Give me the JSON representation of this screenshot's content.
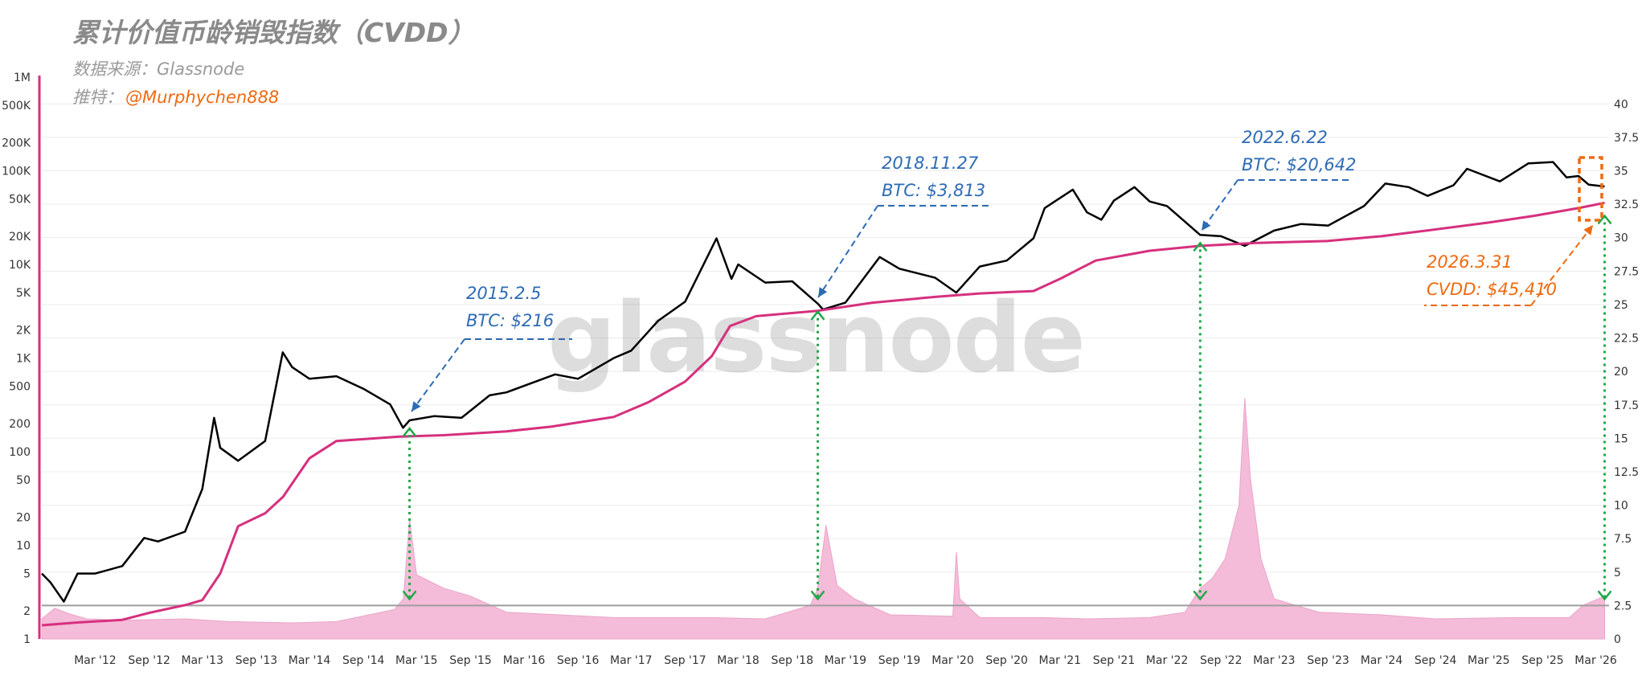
{
  "header": {
    "title": "累计价值币龄销毁指数（CVDD）",
    "source": "数据来源：Glassnode",
    "twitter_label": "推特：",
    "twitter_handle": "@Murphychen888"
  },
  "watermark": "glassnode",
  "colors": {
    "price": "#000000",
    "cvdd": "#d6307e",
    "volume": "#f4bcd8",
    "annotation_blue": "#2d6bb5",
    "annotation_orange": "#ee6a10",
    "green_arrow": "#21a84a",
    "left_axis": "#d6307e"
  },
  "annotations": [
    {
      "date": "2015.2.5",
      "value": "BTC: $216"
    },
    {
      "date": "2018.11.27",
      "value": "BTC: $3,813"
    },
    {
      "date": "2022.6.22",
      "value": "BTC: $20,642"
    },
    {
      "date": "2026.3.31",
      "value": "CVDD: $45,410"
    }
  ],
  "chart_data": {
    "type": "line",
    "title": "累计价值币龄销毁指数（CVDD）",
    "y_scale": "log",
    "ylim": [
      1,
      1000000
    ],
    "y_ticks": [
      "1",
      "2",
      "5",
      "10",
      "20",
      "50",
      "100",
      "200",
      "500",
      "1K",
      "2K",
      "5K",
      "10K",
      "20K",
      "50K",
      "100K",
      "200K",
      "500K",
      "1M"
    ],
    "y_tick_values": [
      1,
      2,
      5,
      10,
      20,
      50,
      100,
      200,
      500,
      1000,
      2000,
      5000,
      10000,
      20000,
      50000,
      100000,
      200000,
      500000,
      1000000
    ],
    "y2lim": [
      0,
      42
    ],
    "y2_ticks": [
      "0",
      "2.5",
      "5",
      "7.5",
      "10",
      "12.5",
      "15",
      "17.5",
      "20",
      "22.5",
      "25",
      "27.5",
      "30",
      "32.5",
      "35",
      "37.5",
      "40"
    ],
    "x_ticks": [
      "Mar '12",
      "Sep '12",
      "Mar '13",
      "Sep '13",
      "Mar '14",
      "Sep '14",
      "Mar '15",
      "Sep '15",
      "Mar '16",
      "Sep '16",
      "Mar '17",
      "Sep '17",
      "Mar '18",
      "Sep '18",
      "Mar '19",
      "Sep '19",
      "Mar '20",
      "Sep '20",
      "Mar '21",
      "Sep '21",
      "Mar '22",
      "Sep '22",
      "Mar '23",
      "Sep '23",
      "Mar '24",
      "Sep '24",
      "Mar '25",
      "Sep '25",
      "Mar '26"
    ],
    "x_range": [
      "2011-09-01",
      "2026-04-15"
    ],
    "grid": true,
    "series": [
      {
        "role": "price",
        "x": [
          "2011-09-01",
          "2011-10-01",
          "2011-11-15",
          "2012-01-01",
          "2012-03-01",
          "2012-06-01",
          "2012-08-15",
          "2012-10-01",
          "2013-01-01",
          "2013-03-01",
          "2013-04-10",
          "2013-05-01",
          "2013-07-01",
          "2013-10-01",
          "2013-11-30",
          "2014-01-01",
          "2014-03-01",
          "2014-06-01",
          "2014-09-01",
          "2014-12-01",
          "2015-01-14",
          "2015-02-05",
          "2015-05-01",
          "2015-08-01",
          "2015-11-05",
          "2016-01-01",
          "2016-06-15",
          "2016-09-01",
          "2017-01-01",
          "2017-03-01",
          "2017-06-01",
          "2017-09-01",
          "2017-12-17",
          "2018-02-06",
          "2018-03-01",
          "2018-06-01",
          "2018-09-01",
          "2018-11-27",
          "2018-12-15",
          "2019-03-01",
          "2019-06-26",
          "2019-09-01",
          "2020-01-01",
          "2020-03-13",
          "2020-06-01",
          "2020-09-01",
          "2020-12-01",
          "2021-01-08",
          "2021-04-14",
          "2021-06-01",
          "2021-07-20",
          "2021-09-01",
          "2021-11-10",
          "2022-01-01",
          "2022-03-01",
          "2022-06-22",
          "2022-09-01",
          "2022-11-21",
          "2023-03-01",
          "2023-06-01",
          "2023-09-01",
          "2024-01-01",
          "2024-03-14",
          "2024-06-01",
          "2024-08-05",
          "2024-11-01",
          "2024-12-17",
          "2025-04-08",
          "2025-07-14",
          "2025-10-06",
          "2025-11-21",
          "2026-01-01",
          "2026-02-05",
          "2026-03-31"
        ],
        "values": [
          5,
          4,
          2.5,
          5,
          5,
          6,
          12,
          11,
          14,
          40,
          230,
          110,
          80,
          130,
          1150,
          800,
          600,
          640,
          470,
          320,
          180,
          216,
          240,
          230,
          400,
          430,
          670,
          600,
          1000,
          1200,
          2500,
          4000,
          19000,
          7000,
          10000,
          6400,
          6600,
          3813,
          3300,
          3900,
          12000,
          9000,
          7200,
          5000,
          9500,
          11000,
          19000,
          40000,
          63000,
          36000,
          30000,
          48000,
          67000,
          47000,
          42000,
          20642,
          20000,
          15800,
          23000,
          27000,
          26000,
          42000,
          73000,
          67000,
          54000,
          70000,
          105000,
          77000,
          120000,
          124000,
          85000,
          88000,
          71000,
          68000
        ]
      },
      {
        "role": "cvdd",
        "x": [
          "2011-09-01",
          "2012-01-01",
          "2012-06-01",
          "2012-09-01",
          "2013-01-01",
          "2013-03-01",
          "2013-05-01",
          "2013-07-01",
          "2013-10-01",
          "2013-12-01",
          "2014-03-01",
          "2014-06-01",
          "2015-01-01",
          "2015-06-01",
          "2016-01-01",
          "2016-06-01",
          "2017-01-01",
          "2017-05-01",
          "2017-09-01",
          "2017-12-01",
          "2018-02-01",
          "2018-05-01",
          "2018-11-27",
          "2019-06-01",
          "2020-01-01",
          "2020-06-01",
          "2020-12-01",
          "2021-03-01",
          "2021-07-01",
          "2022-01-01",
          "2022-06-22",
          "2023-01-01",
          "2023-09-01",
          "2024-03-01",
          "2024-08-01",
          "2025-03-01",
          "2025-08-01",
          "2026-01-01",
          "2026-03-31"
        ],
        "values": [
          1.4,
          1.5,
          1.6,
          1.9,
          2.3,
          2.6,
          5,
          16,
          22,
          33,
          85,
          130,
          145,
          150,
          165,
          185,
          235,
          340,
          560,
          1050,
          2200,
          2800,
          3200,
          3900,
          4500,
          4900,
          5200,
          7000,
          11000,
          14000,
          15800,
          17000,
          17800,
          20000,
          23000,
          28000,
          33000,
          40000,
          45410
        ]
      }
    ],
    "volume": {
      "x": [
        "2011-09-01",
        "2011-10-15",
        "2011-12-01",
        "2012-02-01",
        "2012-06-01",
        "2013-01-01",
        "2013-06-01",
        "2014-01-01",
        "2014-06-01",
        "2014-12-15",
        "2015-01-15",
        "2015-02-05",
        "2015-03-01",
        "2015-06-01",
        "2015-09-01",
        "2016-01-01",
        "2017-01-01",
        "2017-12-01",
        "2018-06-01",
        "2018-11-01",
        "2018-11-27",
        "2018-12-25",
        "2019-02-01",
        "2019-04-01",
        "2019-08-01",
        "2020-03-01",
        "2020-03-13",
        "2020-03-25",
        "2020-06-01",
        "2021-01-01",
        "2021-06-01",
        "2022-01-01",
        "2022-05-01",
        "2022-06-22",
        "2022-08-01",
        "2022-09-15",
        "2022-11-01",
        "2022-11-21",
        "2022-12-10",
        "2023-01-15",
        "2023-03-01",
        "2023-08-01",
        "2024-03-01",
        "2024-09-01",
        "2025-06-01",
        "2025-12-01",
        "2026-01-15",
        "2026-03-31"
      ],
      "values": [
        1.5,
        2.3,
        1.9,
        1.5,
        1.4,
        1.5,
        1.3,
        1.2,
        1.3,
        2.2,
        3.0,
        9.0,
        4.8,
        3.8,
        3.2,
        2.0,
        1.6,
        1.6,
        1.5,
        2.5,
        3.8,
        8.5,
        4.0,
        3.0,
        1.8,
        1.7,
        6.5,
        3.0,
        1.6,
        1.6,
        1.5,
        1.6,
        2.0,
        3.8,
        4.5,
        6.0,
        10.0,
        18.0,
        12.0,
        6.0,
        3.0,
        2.0,
        1.8,
        1.5,
        1.6,
        1.6,
        2.5,
        3.2
      ]
    },
    "threshold_line": 2.5,
    "markers": [
      {
        "date": "2015-02-05",
        "label": "2015.2.5",
        "value_label": "BTC: $216"
      },
      {
        "date": "2018-11-27",
        "label": "2018.11.27",
        "value_label": "BTC: $3,813"
      },
      {
        "date": "2022-06-22",
        "label": "2022.6.22",
        "value_label": "BTC: $20,642"
      },
      {
        "date": "2026-03-31",
        "label": "2026.3.31",
        "value_label": "CVDD: $45,410"
      }
    ]
  }
}
